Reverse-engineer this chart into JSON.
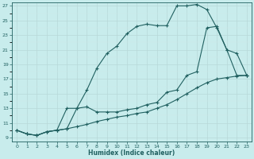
{
  "xlabel": "Humidex (Indice chaleur)",
  "xlim": [
    -0.5,
    23.5
  ],
  "ylim": [
    8.5,
    27.5
  ],
  "xticks": [
    0,
    1,
    2,
    3,
    4,
    5,
    6,
    7,
    8,
    9,
    10,
    11,
    12,
    13,
    14,
    15,
    16,
    17,
    18,
    19,
    20,
    21,
    22,
    23
  ],
  "yticks": [
    9,
    11,
    13,
    15,
    17,
    19,
    21,
    23,
    25,
    27
  ],
  "bg_color": "#c8ecec",
  "grid_major_color": "#b8d8d8",
  "grid_minor_color": "#cce8e8",
  "line_color": "#206060",
  "curve1_x": [
    0,
    1,
    2,
    3,
    4,
    5,
    6,
    7,
    8,
    9,
    10,
    11,
    12,
    13,
    14,
    15,
    16,
    17,
    18,
    19,
    20,
    21,
    22,
    23
  ],
  "curve1_y": [
    10.0,
    9.5,
    9.3,
    9.8,
    10.0,
    13.0,
    13.0,
    15.5,
    18.5,
    20.5,
    21.5,
    23.2,
    24.2,
    24.5,
    24.3,
    24.3,
    27.0,
    27.0,
    27.2,
    26.5,
    24.0,
    21.0,
    20.5,
    17.5
  ],
  "curve2_x": [
    0,
    1,
    2,
    3,
    4,
    5,
    6,
    7,
    8,
    9,
    10,
    11,
    12,
    13,
    14,
    15,
    16,
    17,
    18,
    19,
    20,
    21,
    22,
    23
  ],
  "curve2_y": [
    10.0,
    9.5,
    9.3,
    9.8,
    10.0,
    10.2,
    13.0,
    13.2,
    12.5,
    12.5,
    12.5,
    12.8,
    13.0,
    13.5,
    13.8,
    15.2,
    15.5,
    17.5,
    18.0,
    24.0,
    24.2,
    21.0,
    17.5,
    17.5
  ],
  "curve3_x": [
    0,
    1,
    2,
    3,
    4,
    5,
    6,
    7,
    8,
    9,
    10,
    11,
    12,
    13,
    14,
    15,
    16,
    17,
    18,
    19,
    20,
    21,
    22,
    23
  ],
  "curve3_y": [
    10.0,
    9.5,
    9.3,
    9.8,
    10.0,
    10.2,
    10.5,
    10.8,
    11.2,
    11.5,
    11.8,
    12.0,
    12.3,
    12.5,
    13.0,
    13.5,
    14.2,
    15.0,
    15.8,
    16.5,
    17.0,
    17.2,
    17.4,
    17.5
  ]
}
